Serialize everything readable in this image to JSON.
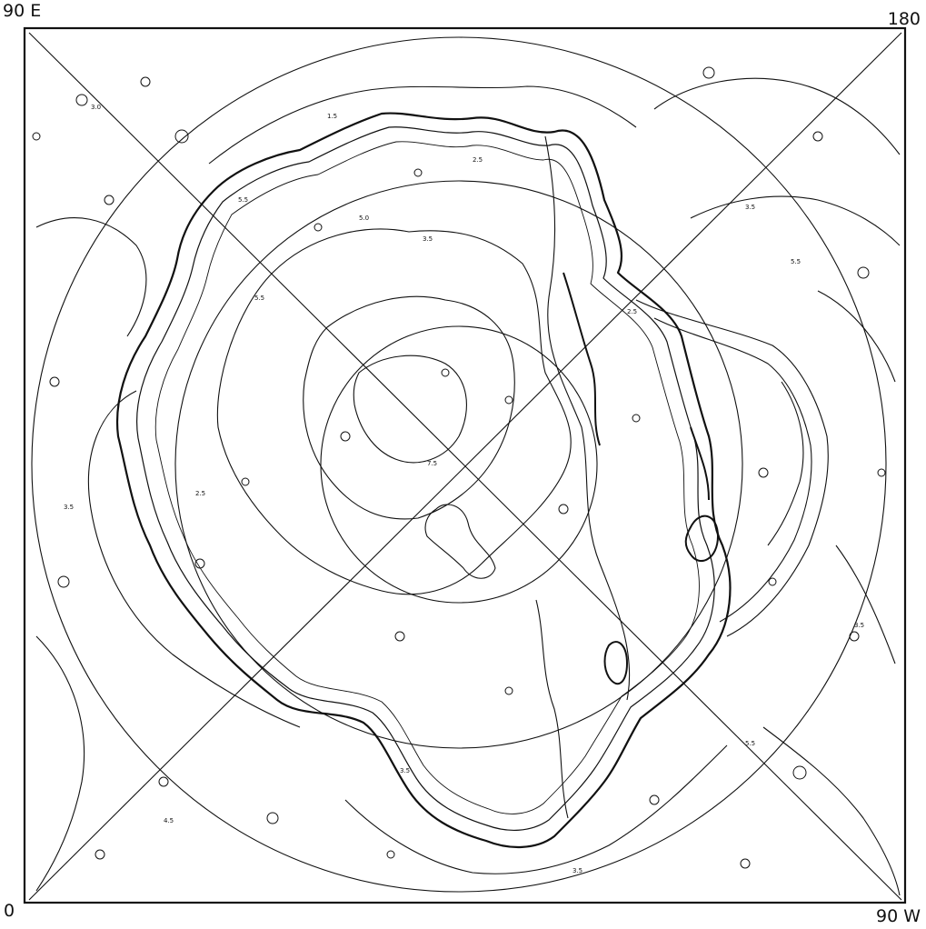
{
  "map": {
    "projection": "polar stereographic (south pole centered)",
    "style": {
      "ink_color": "#111111",
      "background": "#ffffff"
    },
    "corner_labels": {
      "top_left": "90 E",
      "top_right": "180",
      "bottom_left": "0",
      "bottom_right": "90 W"
    },
    "graticule": {
      "latitude_circles": 4,
      "meridian_lines": 2
    },
    "contour_labels": [
      "5.5",
      "5.5",
      "3.5",
      "5.0",
      "2.5",
      "3.5",
      "7.5",
      "3.0",
      "1.5",
      "2.5",
      "3.5",
      "5.5",
      "3.5",
      "5.5",
      "4.5",
      "3.5",
      "2.5",
      "3.5"
    ]
  }
}
